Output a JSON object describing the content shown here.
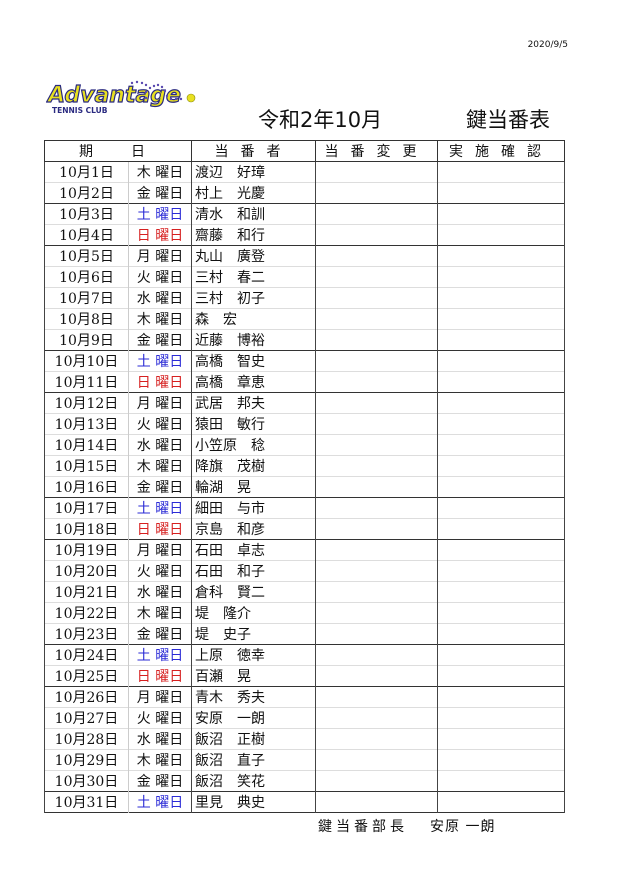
{
  "printed_date": "2020/9/5",
  "logo": {
    "text": "Advantage",
    "subtext": "TENNIS CLUB"
  },
  "title_month": "令和2年10月",
  "title_main": "鍵当番表",
  "headers": [
    "期　日",
    "当番者",
    "当番変更",
    "実施確認"
  ],
  "colors": {
    "saturday": "#2b2bd6",
    "sunday": "#d62020"
  },
  "rows": [
    {
      "date": "10月1日",
      "weekday": "木 曜日",
      "name": "渡辺　好璋"
    },
    {
      "date": "10月2日",
      "weekday": "金 曜日",
      "name": "村上　光慶"
    },
    {
      "date": "10月3日",
      "weekday": "土 曜日",
      "name": "清水　和訓"
    },
    {
      "date": "10月4日",
      "weekday": "日 曜日",
      "name": "齋藤　和行"
    },
    {
      "date": "10月5日",
      "weekday": "月 曜日",
      "name": "丸山　廣登"
    },
    {
      "date": "10月6日",
      "weekday": "火 曜日",
      "name": "三村　春二"
    },
    {
      "date": "10月7日",
      "weekday": "水 曜日",
      "name": "三村　初子"
    },
    {
      "date": "10月8日",
      "weekday": "木 曜日",
      "name": "森　宏"
    },
    {
      "date": "10月9日",
      "weekday": "金 曜日",
      "name": "近藤　博裕"
    },
    {
      "date": "10月10日",
      "weekday": "土 曜日",
      "name": "高橋　智史"
    },
    {
      "date": "10月11日",
      "weekday": "日 曜日",
      "name": "高橋　章恵"
    },
    {
      "date": "10月12日",
      "weekday": "月 曜日",
      "name": "武居　邦夫"
    },
    {
      "date": "10月13日",
      "weekday": "火 曜日",
      "name": "猿田　敏行"
    },
    {
      "date": "10月14日",
      "weekday": "水 曜日",
      "name": "小笠原　稔"
    },
    {
      "date": "10月15日",
      "weekday": "木 曜日",
      "name": "降旗　茂樹"
    },
    {
      "date": "10月16日",
      "weekday": "金 曜日",
      "name": "輪湖　晃"
    },
    {
      "date": "10月17日",
      "weekday": "土 曜日",
      "name": "細田　与市"
    },
    {
      "date": "10月18日",
      "weekday": "日 曜日",
      "name": "京島　和彦"
    },
    {
      "date": "10月19日",
      "weekday": "月 曜日",
      "name": "石田　卓志"
    },
    {
      "date": "10月20日",
      "weekday": "火 曜日",
      "name": "石田　和子"
    },
    {
      "date": "10月21日",
      "weekday": "水 曜日",
      "name": "倉科　賢二"
    },
    {
      "date": "10月22日",
      "weekday": "木 曜日",
      "name": "堤　隆介"
    },
    {
      "date": "10月23日",
      "weekday": "金 曜日",
      "name": "堤　史子"
    },
    {
      "date": "10月24日",
      "weekday": "土 曜日",
      "name": "上原　徳幸"
    },
    {
      "date": "10月25日",
      "weekday": "日 曜日",
      "name": "百瀬　晃"
    },
    {
      "date": "10月26日",
      "weekday": "月 曜日",
      "name": "青木　秀夫"
    },
    {
      "date": "10月27日",
      "weekday": "火 曜日",
      "name": "安原　一朗"
    },
    {
      "date": "10月28日",
      "weekday": "水 曜日",
      "name": "飯沼　正樹"
    },
    {
      "date": "10月29日",
      "weekday": "木 曜日",
      "name": "飯沼　直子"
    },
    {
      "date": "10月30日",
      "weekday": "金 曜日",
      "name": "飯沼　笑花"
    },
    {
      "date": "10月31日",
      "weekday": "土 曜日",
      "name": "里見　典史"
    }
  ],
  "footer": {
    "role": "鍵当番部長",
    "name": "安原 一朗"
  }
}
